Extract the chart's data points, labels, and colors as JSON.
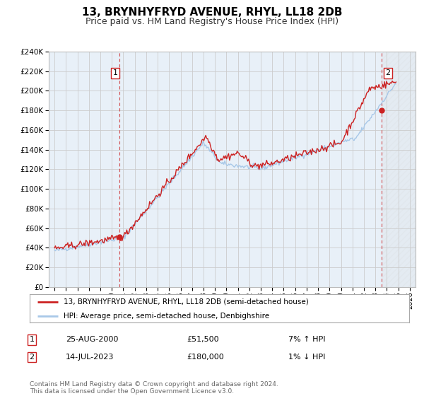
{
  "title": "13, BRYNHYFRYD AVENUE, RHYL, LL18 2DB",
  "subtitle": "Price paid vs. HM Land Registry's House Price Index (HPI)",
  "title_fontsize": 11,
  "subtitle_fontsize": 9,
  "xlim": [
    1994.5,
    2026.5
  ],
  "ylim": [
    0,
    240000
  ],
  "yticks": [
    0,
    20000,
    40000,
    60000,
    80000,
    100000,
    120000,
    140000,
    160000,
    180000,
    200000,
    220000,
    240000
  ],
  "xticks": [
    1995,
    1996,
    1997,
    1998,
    1999,
    2000,
    2001,
    2002,
    2003,
    2004,
    2005,
    2006,
    2007,
    2008,
    2009,
    2010,
    2011,
    2012,
    2013,
    2014,
    2015,
    2016,
    2017,
    2018,
    2019,
    2020,
    2021,
    2022,
    2023,
    2024,
    2025,
    2026
  ],
  "hpi_color": "#a8c8e8",
  "price_color": "#cc2222",
  "marker_color": "#cc2222",
  "vline_color": "#cc2222",
  "grid_color": "#cccccc",
  "bg_color": "#e8f0f8",
  "legend_label_price": "13, BRYNHYFRYD AVENUE, RHYL, LL18 2DB (semi-detached house)",
  "legend_label_hpi": "HPI: Average price, semi-detached house, Denbighshire",
  "sale1_year": 2000.65,
  "sale1_price": 51500,
  "sale1_label": "1",
  "sale2_year": 2023.54,
  "sale2_price": 180000,
  "sale2_label": "2",
  "annotation1_date": "25-AUG-2000",
  "annotation1_price": "£51,500",
  "annotation1_hpi": "7% ↑ HPI",
  "annotation2_date": "14-JUL-2023",
  "annotation2_price": "£180,000",
  "annotation2_hpi": "1% ↓ HPI",
  "footnote": "Contains HM Land Registry data © Crown copyright and database right 2024.\nThis data is licensed under the Open Government Licence v3.0.",
  "footnote_fontsize": 6.5
}
